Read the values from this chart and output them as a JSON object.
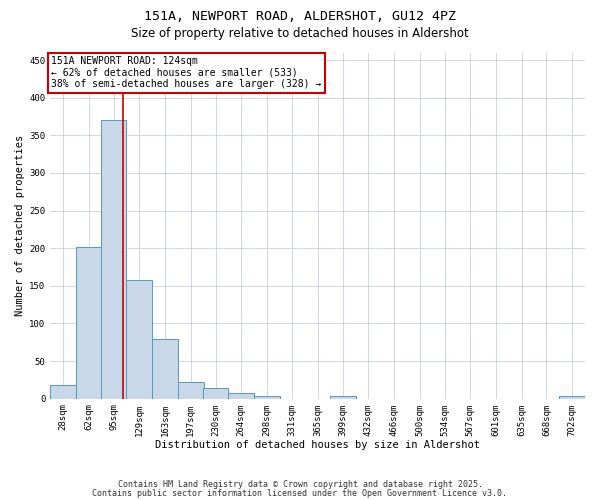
{
  "title": "151A, NEWPORT ROAD, ALDERSHOT, GU12 4PZ",
  "subtitle": "Size of property relative to detached houses in Aldershot",
  "xlabel": "Distribution of detached houses by size in Aldershot",
  "ylabel": "Number of detached properties",
  "bin_edges": [
    28,
    62,
    95,
    129,
    163,
    197,
    230,
    264,
    298,
    331,
    365,
    399,
    432,
    466,
    500,
    534,
    567,
    601,
    635,
    668,
    702
  ],
  "bar_heights": [
    18,
    201,
    370,
    158,
    80,
    22,
    14,
    7,
    4,
    0,
    0,
    4,
    0,
    0,
    0,
    0,
    0,
    0,
    0,
    0,
    3
  ],
  "bar_color": "#c8d8e8",
  "bar_edgecolor": "#5599bb",
  "redline_x": 124,
  "annotation_line1": "151A NEWPORT ROAD: 124sqm",
  "annotation_line2": "← 62% of detached houses are smaller (533)",
  "annotation_line3": "38% of semi-detached houses are larger (328) →",
  "annotation_box_color": "#cc0000",
  "annotation_text_fontsize": 7.0,
  "ylim": [
    0,
    460
  ],
  "yticks": [
    0,
    50,
    100,
    150,
    200,
    250,
    300,
    350,
    400,
    450
  ],
  "footer_line1": "Contains HM Land Registry data © Crown copyright and database right 2025.",
  "footer_line2": "Contains public sector information licensed under the Open Government Licence v3.0.",
  "footer_fontsize": 6.0,
  "background_color": "#ffffff",
  "grid_color": "#b0b8d0",
  "title_fontsize": 9.5,
  "subtitle_fontsize": 8.5,
  "ylabel_fontsize": 7.5,
  "xlabel_fontsize": 7.5,
  "tick_fontsize": 6.5
}
